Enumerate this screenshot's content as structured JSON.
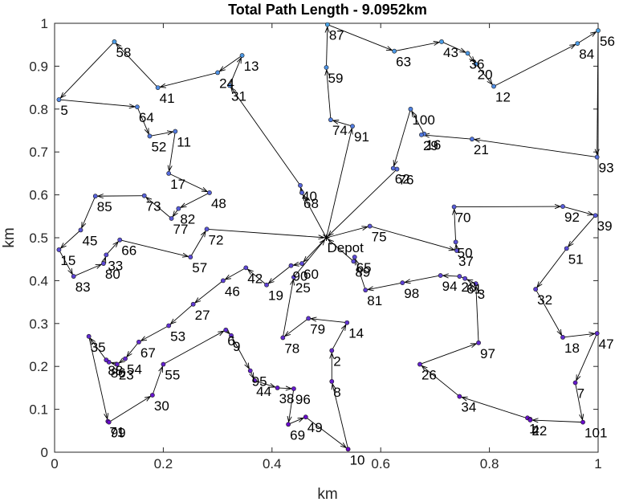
{
  "chart_data": {
    "type": "scatter",
    "title": "Total Path Length - 9.0952km",
    "xlabel": "km",
    "ylabel": "km",
    "xlim": [
      0,
      1
    ],
    "ylim": [
      0,
      1
    ],
    "xticks": [
      "0",
      "0.2",
      "0.4",
      "0.6",
      "0.8",
      "1"
    ],
    "yticks": [
      "0",
      "0.1",
      "0.2",
      "0.3",
      "0.4",
      "0.5",
      "0.6",
      "0.7",
      "0.8",
      "0.9",
      "1"
    ],
    "grid": false,
    "depot": {
      "label": "Depot",
      "x": 0.5,
      "y": 0.5
    },
    "colors": {
      "point_start": "#4aa3e6",
      "point_end": "#6a00c8",
      "edge": "#000000",
      "axis": "#262626"
    },
    "nodes": [
      {
        "id": "1",
        "x": 0.87,
        "y": 0.08
      },
      {
        "id": "2",
        "x": 0.51,
        "y": 0.237
      },
      {
        "id": "3",
        "x": 0.775,
        "y": 0.393
      },
      {
        "id": "4",
        "x": 0.875,
        "y": 0.077
      },
      {
        "id": "5",
        "x": 0.008,
        "y": 0.822
      },
      {
        "id": "6",
        "x": 0.315,
        "y": 0.285
      },
      {
        "id": "7",
        "x": 0.958,
        "y": 0.162
      },
      {
        "id": "8",
        "x": 0.51,
        "y": 0.165
      },
      {
        "id": "9",
        "x": 0.325,
        "y": 0.272
      },
      {
        "id": "10",
        "x": 0.54,
        "y": 0.007
      },
      {
        "id": "11",
        "x": 0.222,
        "y": 0.748
      },
      {
        "id": "12",
        "x": 0.808,
        "y": 0.853
      },
      {
        "id": "13",
        "x": 0.345,
        "y": 0.925
      },
      {
        "id": "14",
        "x": 0.538,
        "y": 0.302
      },
      {
        "id": "15",
        "x": 0.008,
        "y": 0.472
      },
      {
        "id": "16",
        "x": 0.68,
        "y": 0.742
      },
      {
        "id": "17",
        "x": 0.21,
        "y": 0.65
      },
      {
        "id": "18",
        "x": 0.935,
        "y": 0.268
      },
      {
        "id": "19",
        "x": 0.39,
        "y": 0.39
      },
      {
        "id": "20",
        "x": 0.775,
        "y": 0.905
      },
      {
        "id": "21",
        "x": 0.768,
        "y": 0.73
      },
      {
        "id": "22",
        "x": 0.875,
        "y": 0.075
      },
      {
        "id": "23",
        "x": 0.115,
        "y": 0.205
      },
      {
        "id": "24",
        "x": 0.3,
        "y": 0.885
      },
      {
        "id": "25",
        "x": 0.44,
        "y": 0.408
      },
      {
        "id": "26",
        "x": 0.672,
        "y": 0.205
      },
      {
        "id": "27",
        "x": 0.255,
        "y": 0.345
      },
      {
        "id": "28",
        "x": 0.745,
        "y": 0.41
      },
      {
        "id": "29",
        "x": 0.675,
        "y": 0.74
      },
      {
        "id": "30",
        "x": 0.18,
        "y": 0.133
      },
      {
        "id": "31",
        "x": 0.322,
        "y": 0.855
      },
      {
        "id": "32",
        "x": 0.885,
        "y": 0.38
      },
      {
        "id": "33",
        "x": 0.095,
        "y": 0.46
      },
      {
        "id": "34",
        "x": 0.745,
        "y": 0.13
      },
      {
        "id": "35",
        "x": 0.063,
        "y": 0.27
      },
      {
        "id": "36",
        "x": 0.76,
        "y": 0.93
      },
      {
        "id": "37",
        "x": 0.74,
        "y": 0.47
      },
      {
        "id": "38",
        "x": 0.41,
        "y": 0.15
      },
      {
        "id": "39",
        "x": 0.995,
        "y": 0.552
      },
      {
        "id": "40",
        "x": 0.452,
        "y": 0.622
      },
      {
        "id": "41",
        "x": 0.19,
        "y": 0.85
      },
      {
        "id": "42",
        "x": 0.352,
        "y": 0.43
      },
      {
        "id": "43",
        "x": 0.712,
        "y": 0.957
      },
      {
        "id": "44",
        "x": 0.368,
        "y": 0.167
      },
      {
        "id": "45",
        "x": 0.048,
        "y": 0.518
      },
      {
        "id": "46",
        "x": 0.31,
        "y": 0.4
      },
      {
        "id": "47",
        "x": 0.998,
        "y": 0.277
      },
      {
        "id": "48",
        "x": 0.285,
        "y": 0.605
      },
      {
        "id": "49",
        "x": 0.462,
        "y": 0.082
      },
      {
        "id": "50",
        "x": 0.738,
        "y": 0.49
      },
      {
        "id": "51",
        "x": 0.942,
        "y": 0.475
      },
      {
        "id": "52",
        "x": 0.175,
        "y": 0.737
      },
      {
        "id": "53",
        "x": 0.21,
        "y": 0.295
      },
      {
        "id": "54",
        "x": 0.13,
        "y": 0.218
      },
      {
        "id": "55",
        "x": 0.2,
        "y": 0.205
      },
      {
        "id": "56",
        "x": 1.0,
        "y": 0.983
      },
      {
        "id": "57",
        "x": 0.25,
        "y": 0.455
      },
      {
        "id": "58",
        "x": 0.11,
        "y": 0.957
      },
      {
        "id": "59",
        "x": 0.5,
        "y": 0.897
      },
      {
        "id": "60",
        "x": 0.455,
        "y": 0.44
      },
      {
        "id": "61",
        "x": 0.755,
        "y": 0.405
      },
      {
        "id": "62",
        "x": 0.623,
        "y": 0.662
      },
      {
        "id": "63",
        "x": 0.625,
        "y": 0.935
      },
      {
        "id": "64",
        "x": 0.152,
        "y": 0.805
      },
      {
        "id": "65",
        "x": 0.552,
        "y": 0.455
      },
      {
        "id": "66",
        "x": 0.12,
        "y": 0.495
      },
      {
        "id": "67",
        "x": 0.155,
        "y": 0.257
      },
      {
        "id": "68",
        "x": 0.455,
        "y": 0.605
      },
      {
        "id": "69",
        "x": 0.43,
        "y": 0.065
      },
      {
        "id": "70",
        "x": 0.735,
        "y": 0.572
      },
      {
        "id": "71",
        "x": 0.098,
        "y": 0.072
      },
      {
        "id": "72",
        "x": 0.28,
        "y": 0.52
      },
      {
        "id": "73",
        "x": 0.165,
        "y": 0.598
      },
      {
        "id": "74",
        "x": 0.508,
        "y": 0.775
      },
      {
        "id": "75",
        "x": 0.58,
        "y": 0.527
      },
      {
        "id": "76",
        "x": 0.63,
        "y": 0.66
      },
      {
        "id": "77",
        "x": 0.215,
        "y": 0.545
      },
      {
        "id": "78",
        "x": 0.42,
        "y": 0.267
      },
      {
        "id": "79",
        "x": 0.467,
        "y": 0.312
      },
      {
        "id": "80",
        "x": 0.09,
        "y": 0.44
      },
      {
        "id": "81",
        "x": 0.572,
        "y": 0.378
      },
      {
        "id": "82",
        "x": 0.228,
        "y": 0.568
      },
      {
        "id": "83",
        "x": 0.035,
        "y": 0.41
      },
      {
        "id": "84",
        "x": 0.962,
        "y": 0.953
      },
      {
        "id": "85",
        "x": 0.075,
        "y": 0.597
      },
      {
        "id": "86",
        "x": 0.1,
        "y": 0.21
      },
      {
        "id": "87",
        "x": 0.502,
        "y": 0.997
      },
      {
        "id": "88",
        "x": 0.095,
        "y": 0.215
      },
      {
        "id": "89",
        "x": 0.55,
        "y": 0.445
      },
      {
        "id": "90",
        "x": 0.435,
        "y": 0.435
      },
      {
        "id": "91",
        "x": 0.548,
        "y": 0.76
      },
      {
        "id": "92",
        "x": 0.935,
        "y": 0.573
      },
      {
        "id": "93",
        "x": 0.998,
        "y": 0.688
      },
      {
        "id": "94",
        "x": 0.71,
        "y": 0.412
      },
      {
        "id": "95",
        "x": 0.36,
        "y": 0.19
      },
      {
        "id": "96",
        "x": 0.44,
        "y": 0.148
      },
      {
        "id": "97",
        "x": 0.78,
        "y": 0.255
      },
      {
        "id": "98",
        "x": 0.64,
        "y": 0.395
      },
      {
        "id": "99",
        "x": 0.1,
        "y": 0.07
      },
      {
        "id": "100",
        "x": 0.655,
        "y": 0.8
      },
      {
        "id": "101",
        "x": 0.972,
        "y": 0.07
      }
    ],
    "routes": [
      [
        "Depot",
        "68",
        "40",
        "31",
        "13",
        "24",
        "41",
        "58",
        "5",
        "64",
        "52",
        "11",
        "17",
        "48",
        "82",
        "77",
        "73",
        "85",
        "45",
        "15",
        "83",
        "80",
        "33",
        "66",
        "57",
        "72",
        "Depot"
      ],
      [
        "Depot",
        "91",
        "74",
        "59",
        "87",
        "63",
        "43",
        "36",
        "20",
        "12",
        "84",
        "56",
        "93",
        "21",
        "29",
        "16",
        "100",
        "62",
        "76",
        "Depot"
      ],
      [
        "Depot",
        "75",
        "37",
        "50",
        "70",
        "92",
        "39",
        "51",
        "32",
        "18",
        "47",
        "7",
        "101",
        "22",
        "1",
        "4",
        "34",
        "26",
        "97",
        "3",
        "61",
        "28",
        "94",
        "98",
        "81",
        "65",
        "89",
        "Depot"
      ],
      [
        "Depot",
        "60",
        "90",
        "19",
        "42",
        "46",
        "27",
        "53",
        "67",
        "54",
        "23",
        "86",
        "88",
        "35",
        "71",
        "99",
        "30",
        "55",
        "6",
        "9",
        "95",
        "44",
        "38",
        "96",
        "69",
        "49",
        "10",
        "8",
        "2",
        "14",
        "79",
        "78",
        "25",
        "Depot"
      ]
    ]
  }
}
